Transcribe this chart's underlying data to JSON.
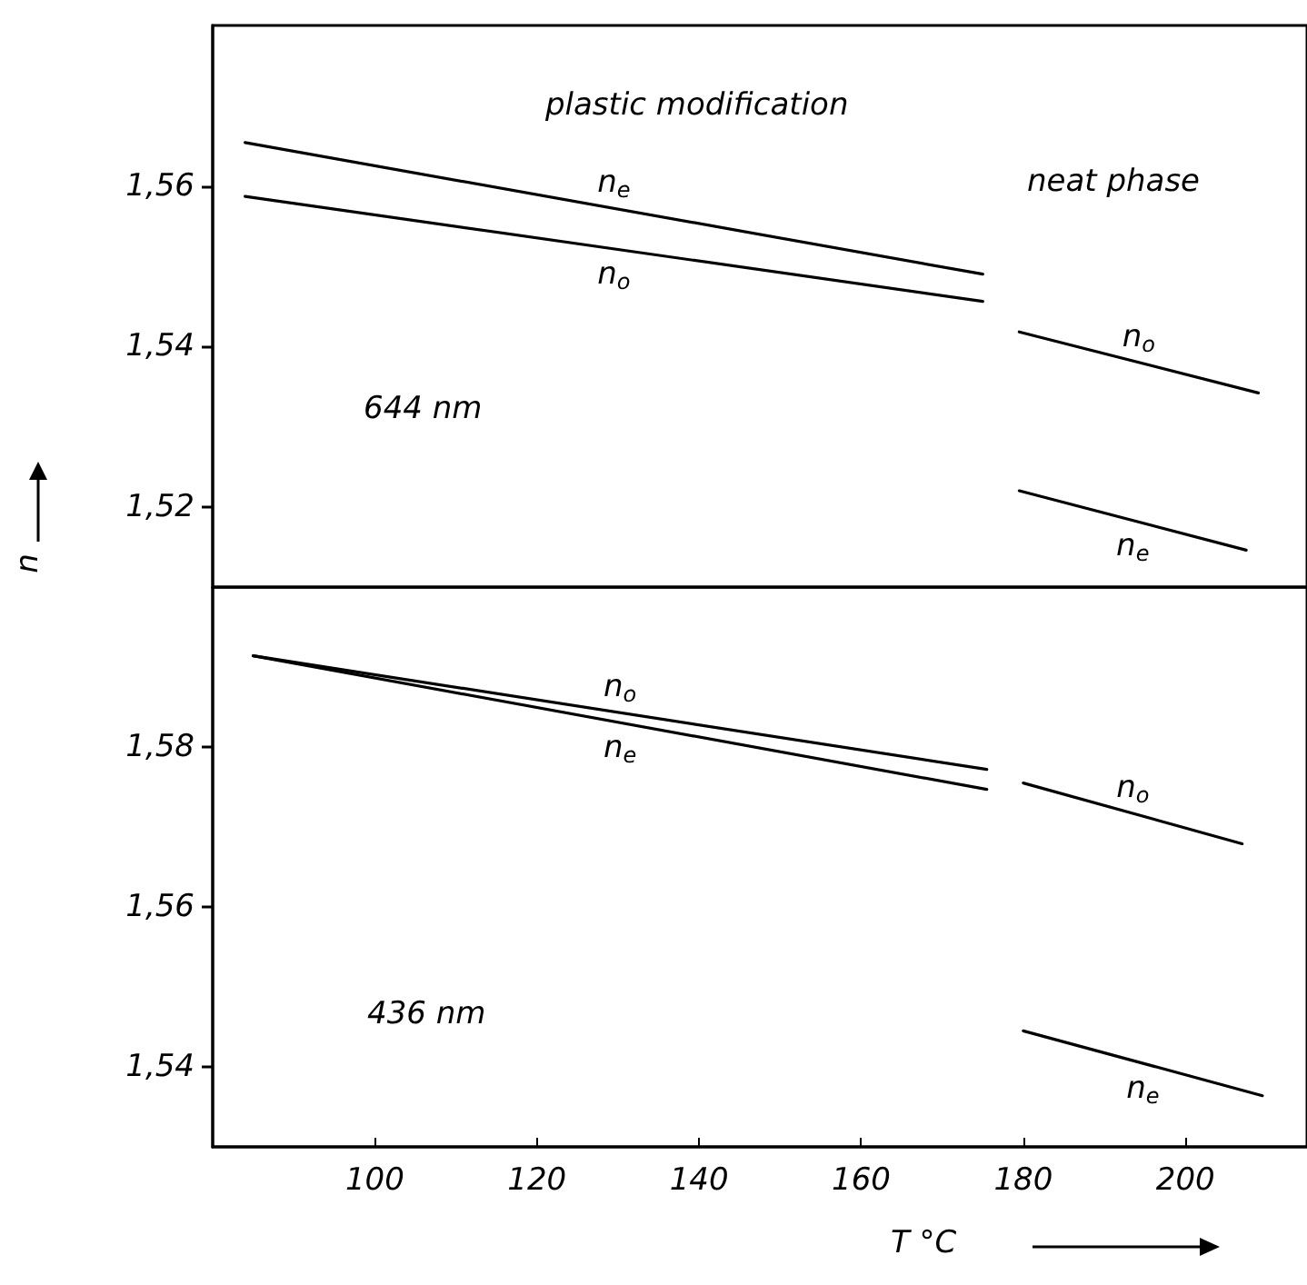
{
  "chart_data": [
    {
      "type": "line",
      "annotations": [
        "plastic modification",
        "neat phase",
        "644 nm"
      ],
      "ylabel": "n",
      "xlim": [
        80,
        215
      ],
      "ylim": [
        1.51,
        1.58
      ],
      "yticks": [
        {
          "value": 1.52,
          "label": "1,52"
        },
        {
          "value": 1.54,
          "label": "1,54"
        },
        {
          "value": 1.56,
          "label": "1,56"
        }
      ],
      "tick_labels": "y",
      "grid": false,
      "legend": false,
      "marker": "none",
      "line_style": "solid",
      "series": [
        {
          "name": "n$_{e}$",
          "color": "#000000",
          "x": [
            84,
            175
          ],
          "values": [
            1.5654,
            1.549
          ]
        },
        {
          "name": "n$_{o}$",
          "color": "#000000",
          "x": [
            84,
            175
          ],
          "values": [
            1.5587,
            1.5456
          ]
        },
        {
          "name": "n$_{o}$",
          "color": "#000000",
          "x": [
            179.5,
            209
          ],
          "values": [
            1.5418,
            1.5342
          ]
        },
        {
          "name": "n$_{e}$",
          "color": "#000000",
          "x": [
            179.5,
            207.5
          ],
          "values": [
            1.522,
            1.5146
          ]
        }
      ]
    },
    {
      "type": "line",
      "annotations": [
        "436 nm"
      ],
      "xlabel": "T °C",
      "xlim": [
        80,
        215
      ],
      "xticks": [
        100,
        120,
        140,
        160,
        180,
        200
      ],
      "ylim": [
        1.53,
        1.6
      ],
      "yticks": [
        {
          "value": 1.54,
          "label": "1,54"
        },
        {
          "value": 1.56,
          "label": "1,56"
        },
        {
          "value": 1.58,
          "label": "1,58"
        }
      ],
      "grid": false,
      "legend": false,
      "marker": "none",
      "line_style": "solid",
      "series": [
        {
          "name": "n$_{e}$",
          "color": "#000000",
          "x": [
            85,
            175.5
          ],
          "values": [
            1.5914,
            1.5747
          ]
        },
        {
          "name": "n$_{o}$",
          "color": "#000000",
          "x": [
            85,
            175.5
          ],
          "values": [
            1.5914,
            1.5772
          ]
        },
        {
          "name": "n$_{o}$",
          "color": "#000000",
          "x": [
            180,
            207
          ],
          "values": [
            1.5755,
            1.5679
          ]
        },
        {
          "name": "n$_{e}$",
          "color": "#000000",
          "x": [
            180,
            209.5
          ],
          "values": [
            1.5445,
            1.5364
          ]
        }
      ]
    }
  ]
}
